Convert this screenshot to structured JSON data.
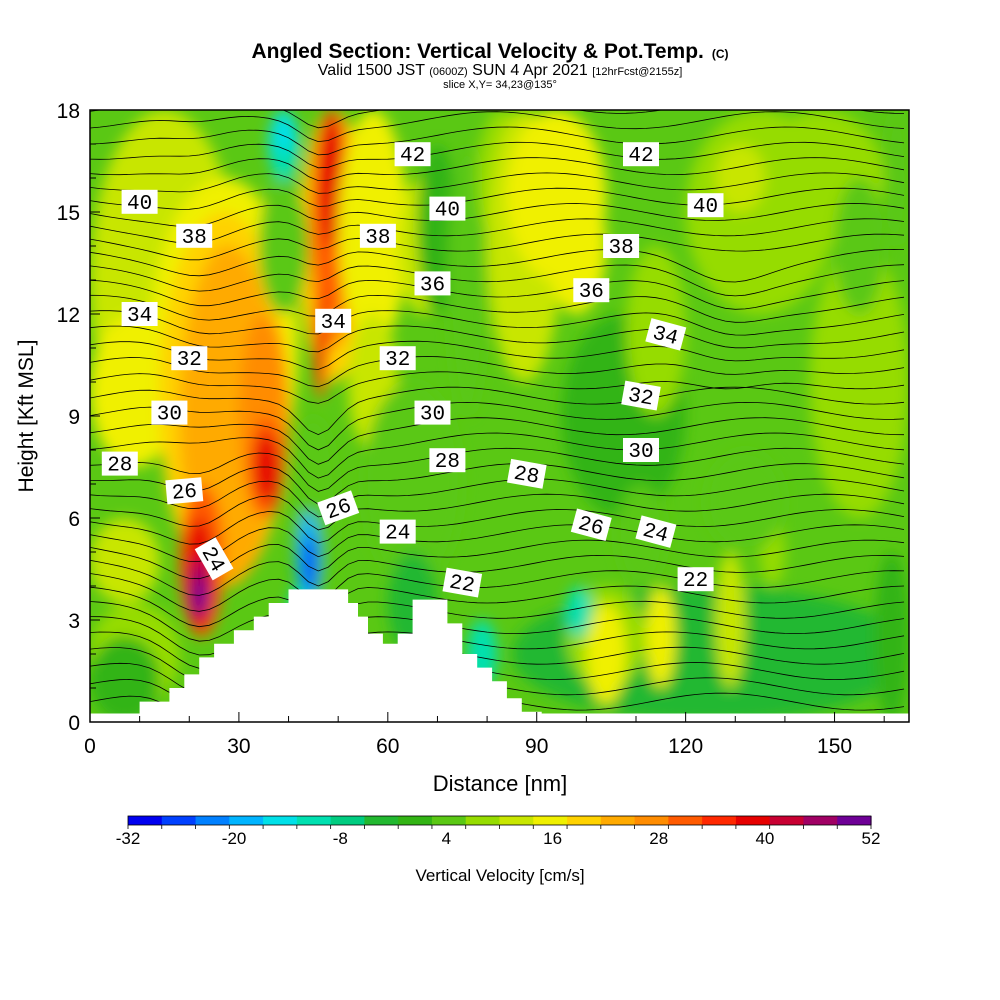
{
  "header": {
    "title": "Angled Section: Vertical Velocity & Pot.Temp.",
    "title_unit": "(C)",
    "valid_prefix": "Valid 1500 JST",
    "valid_utc": "(0600Z)",
    "valid_date": "SUN 4 Apr 2021",
    "forecast": "[12hrFcst@2155z]",
    "slice": "slice X,Y= 34,23@135°"
  },
  "chart_data": {
    "type": "heatmap",
    "xlabel": "Distance [nm]",
    "ylabel": "Height [Kft MSL]",
    "xlim": [
      0,
      165
    ],
    "ylim": [
      0,
      18
    ],
    "x_ticks": [
      0,
      30,
      60,
      90,
      120,
      150
    ],
    "y_ticks": [
      0,
      3,
      6,
      9,
      12,
      15,
      18
    ],
    "field": "Vertical Velocity",
    "contour_field": "Potential Temperature",
    "contour_labels": [
      {
        "text": "40",
        "x": 10,
        "y": 15.3,
        "rot": 0
      },
      {
        "text": "42",
        "x": 65,
        "y": 16.7,
        "rot": 0
      },
      {
        "text": "42",
        "x": 111,
        "y": 16.7,
        "rot": 0
      },
      {
        "text": "40",
        "x": 72,
        "y": 15.1,
        "rot": 0
      },
      {
        "text": "40",
        "x": 124,
        "y": 15.2,
        "rot": 0
      },
      {
        "text": "38",
        "x": 21,
        "y": 14.3,
        "rot": 0
      },
      {
        "text": "38",
        "x": 58,
        "y": 14.3,
        "rot": 0
      },
      {
        "text": "38",
        "x": 107,
        "y": 14.0,
        "rot": 0
      },
      {
        "text": "36",
        "x": 69,
        "y": 12.9,
        "rot": 0
      },
      {
        "text": "36",
        "x": 101,
        "y": 12.7,
        "rot": 0
      },
      {
        "text": "34",
        "x": 10,
        "y": 12.0,
        "rot": 0
      },
      {
        "text": "34",
        "x": 49,
        "y": 11.8,
        "rot": 0
      },
      {
        "text": "34",
        "x": 116,
        "y": 11.4,
        "rot": 15
      },
      {
        "text": "32",
        "x": 20,
        "y": 10.7,
        "rot": 0
      },
      {
        "text": "32",
        "x": 62,
        "y": 10.7,
        "rot": 0
      },
      {
        "text": "32",
        "x": 111,
        "y": 9.6,
        "rot": 10
      },
      {
        "text": "30",
        "x": 16,
        "y": 9.1,
        "rot": 0
      },
      {
        "text": "30",
        "x": 69,
        "y": 9.1,
        "rot": 0
      },
      {
        "text": "30",
        "x": 111,
        "y": 8.0,
        "rot": 0
      },
      {
        "text": "28",
        "x": 6,
        "y": 7.6,
        "rot": 0
      },
      {
        "text": "28",
        "x": 72,
        "y": 7.7,
        "rot": 0
      },
      {
        "text": "28",
        "x": 88,
        "y": 7.3,
        "rot": 10
      },
      {
        "text": "26",
        "x": 19,
        "y": 6.8,
        "rot": -5
      },
      {
        "text": "26",
        "x": 50,
        "y": 6.3,
        "rot": -20
      },
      {
        "text": "26",
        "x": 101,
        "y": 5.8,
        "rot": 15
      },
      {
        "text": "24",
        "x": 25,
        "y": 4.8,
        "rot": 60
      },
      {
        "text": "24",
        "x": 62,
        "y": 5.6,
        "rot": 0
      },
      {
        "text": "24",
        "x": 114,
        "y": 5.6,
        "rot": 15
      },
      {
        "text": "22",
        "x": 75,
        "y": 4.1,
        "rot": 10
      },
      {
        "text": "22",
        "x": 122,
        "y": 4.2,
        "rot": 0
      }
    ],
    "colorbar": {
      "label": "Vertical Velocity [cm/s]",
      "ticks": [
        "-32",
        "-20",
        "-8",
        "4",
        "16",
        "28",
        "40",
        "52"
      ],
      "colors": [
        "#0000f0",
        "#0040ff",
        "#0080ff",
        "#00b4ff",
        "#00e0e8",
        "#00e0b0",
        "#00cc80",
        "#22b830",
        "#32b414",
        "#5ac814",
        "#96dc00",
        "#c8e600",
        "#f0f000",
        "#ffd200",
        "#ffaa00",
        "#ff8c00",
        "#ff5a00",
        "#ff2800",
        "#e60000",
        "#c80032",
        "#a00064",
        "#6e0096"
      ]
    },
    "terrain_color": "#ffffff",
    "contour_color": "#000000"
  }
}
